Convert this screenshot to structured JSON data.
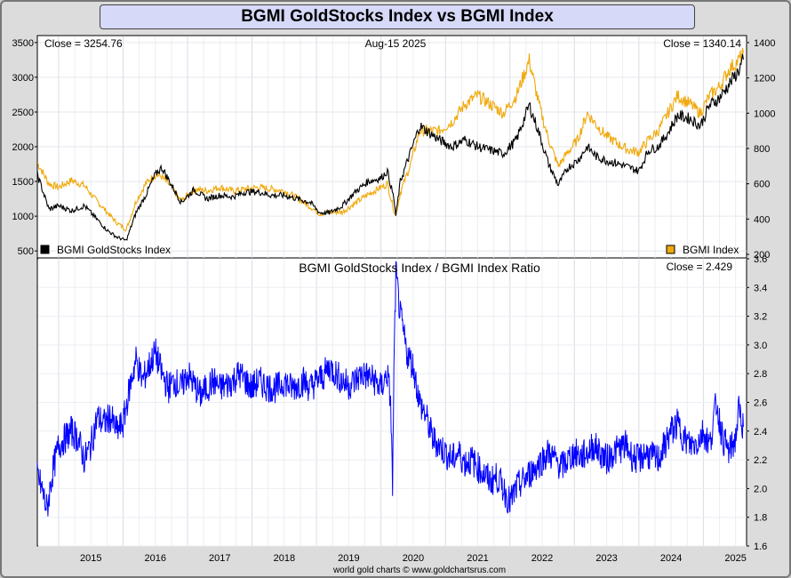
{
  "title": "BGMI GoldStocks Index vs BGMI Index",
  "footer": "world gold charts © www.goldchartsrus.com",
  "colors": {
    "gold_stocks": "#000000",
    "gold_index": "#f0a80a",
    "ratio": "#0000ff"
  },
  "chart_data": [
    {
      "type": "line",
      "date_label": "Aug-15  2025",
      "x_ticks": [
        "2015",
        "2016",
        "2017",
        "2018",
        "2019",
        "2020",
        "2021",
        "2022",
        "2023",
        "2024",
        "2025"
      ],
      "left_axis": {
        "ticks": [
          500,
          1000,
          1500,
          2000,
          2500,
          3000,
          3500
        ],
        "range": [
          400,
          3600
        ]
      },
      "right_axis": {
        "ticks": [
          200,
          400,
          600,
          800,
          1000,
          1200,
          1400
        ],
        "range": [
          180,
          1440
        ]
      },
      "legend": {
        "placement": "bottom"
      },
      "series": [
        {
          "name": "BGMI GoldStocks Index",
          "axis": "left",
          "close_label": "Close = 3254.76",
          "points": [
            [
              2014.67,
              1600
            ],
            [
              2014.85,
              1100
            ],
            [
              2015.0,
              1150
            ],
            [
              2015.2,
              1080
            ],
            [
              2015.4,
              1150
            ],
            [
              2015.55,
              1000
            ],
            [
              2015.75,
              800
            ],
            [
              2015.9,
              700
            ],
            [
              2016.05,
              650
            ],
            [
              2016.2,
              1050
            ],
            [
              2016.35,
              1300
            ],
            [
              2016.5,
              1600
            ],
            [
              2016.6,
              1700
            ],
            [
              2016.75,
              1450
            ],
            [
              2016.9,
              1200
            ],
            [
              2017.1,
              1380
            ],
            [
              2017.3,
              1250
            ],
            [
              2017.5,
              1300
            ],
            [
              2017.7,
              1280
            ],
            [
              2017.9,
              1350
            ],
            [
              2018.1,
              1350
            ],
            [
              2018.3,
              1300
            ],
            [
              2018.5,
              1300
            ],
            [
              2018.7,
              1250
            ],
            [
              2018.9,
              1200
            ],
            [
              2019.05,
              1050
            ],
            [
              2019.2,
              1050
            ],
            [
              2019.4,
              1150
            ],
            [
              2019.6,
              1350
            ],
            [
              2019.8,
              1500
            ],
            [
              2020.0,
              1550
            ],
            [
              2020.1,
              1650
            ],
            [
              2020.2,
              1250
            ],
            [
              2020.23,
              1000
            ],
            [
              2020.3,
              1500
            ],
            [
              2020.45,
              1900
            ],
            [
              2020.6,
              2300
            ],
            [
              2020.75,
              2200
            ],
            [
              2020.9,
              2100
            ],
            [
              2021.1,
              2000
            ],
            [
              2021.3,
              2100
            ],
            [
              2021.5,
              2000
            ],
            [
              2021.7,
              1950
            ],
            [
              2021.9,
              1900
            ],
            [
              2022.1,
              2100
            ],
            [
              2022.3,
              2600
            ],
            [
              2022.45,
              2200
            ],
            [
              2022.6,
              1750
            ],
            [
              2022.75,
              1450
            ],
            [
              2022.9,
              1700
            ],
            [
              2023.05,
              1800
            ],
            [
              2023.2,
              2000
            ],
            [
              2023.35,
              1850
            ],
            [
              2023.5,
              1800
            ],
            [
              2023.7,
              1750
            ],
            [
              2023.85,
              1700
            ],
            [
              2024.0,
              1650
            ],
            [
              2024.15,
              1950
            ],
            [
              2024.3,
              2000
            ],
            [
              2024.45,
              2200
            ],
            [
              2024.6,
              2450
            ],
            [
              2024.8,
              2400
            ],
            [
              2024.95,
              2300
            ],
            [
              2025.1,
              2600
            ],
            [
              2025.25,
              2700
            ],
            [
              2025.4,
              2900
            ],
            [
              2025.55,
              3100
            ],
            [
              2025.62,
              3254.76
            ]
          ]
        },
        {
          "name": "BGMI Index",
          "axis": "right",
          "close_label": "Close = 1340.14",
          "points": [
            [
              2014.67,
              720
            ],
            [
              2014.85,
              600
            ],
            [
              2015.0,
              580
            ],
            [
              2015.2,
              620
            ],
            [
              2015.4,
              590
            ],
            [
              2015.55,
              520
            ],
            [
              2015.75,
              440
            ],
            [
              2015.9,
              380
            ],
            [
              2016.05,
              340
            ],
            [
              2016.2,
              500
            ],
            [
              2016.35,
              600
            ],
            [
              2016.5,
              650
            ],
            [
              2016.6,
              640
            ],
            [
              2016.75,
              580
            ],
            [
              2016.9,
              500
            ],
            [
              2017.1,
              570
            ],
            [
              2017.3,
              560
            ],
            [
              2017.5,
              580
            ],
            [
              2017.7,
              560
            ],
            [
              2017.9,
              570
            ],
            [
              2018.1,
              580
            ],
            [
              2018.3,
              570
            ],
            [
              2018.5,
              560
            ],
            [
              2018.7,
              520
            ],
            [
              2018.9,
              470
            ],
            [
              2019.05,
              430
            ],
            [
              2019.2,
              440
            ],
            [
              2019.4,
              440
            ],
            [
              2019.6,
              490
            ],
            [
              2019.8,
              540
            ],
            [
              2020.0,
              580
            ],
            [
              2020.1,
              600
            ],
            [
              2020.2,
              450
            ],
            [
              2020.23,
              420
            ],
            [
              2020.3,
              550
            ],
            [
              2020.45,
              700
            ],
            [
              2020.6,
              900
            ],
            [
              2020.75,
              900
            ],
            [
              2020.9,
              900
            ],
            [
              2021.1,
              950
            ],
            [
              2021.3,
              1050
            ],
            [
              2021.5,
              1100
            ],
            [
              2021.7,
              1050
            ],
            [
              2021.9,
              1000
            ],
            [
              2022.1,
              1100
            ],
            [
              2022.3,
              1300
            ],
            [
              2022.45,
              1050
            ],
            [
              2022.6,
              850
            ],
            [
              2022.75,
              700
            ],
            [
              2022.9,
              780
            ],
            [
              2023.05,
              850
            ],
            [
              2023.2,
              1000
            ],
            [
              2023.35,
              930
            ],
            [
              2023.5,
              870
            ],
            [
              2023.7,
              820
            ],
            [
              2023.85,
              790
            ],
            [
              2024.0,
              780
            ],
            [
              2024.15,
              850
            ],
            [
              2024.3,
              900
            ],
            [
              2024.45,
              1000
            ],
            [
              2024.6,
              1100
            ],
            [
              2024.8,
              1050
            ],
            [
              2024.95,
              1000
            ],
            [
              2025.1,
              1100
            ],
            [
              2025.25,
              1150
            ],
            [
              2025.4,
              1250
            ],
            [
              2025.55,
              1300
            ],
            [
              2025.62,
              1340.14
            ]
          ]
        }
      ]
    },
    {
      "type": "line",
      "title": "BGMI GoldStocks Index  /  BGMI Index Ratio",
      "close_label": "Close = 2.429",
      "y_ticks": [
        1.6,
        1.8,
        2.0,
        2.2,
        2.4,
        2.6,
        2.8,
        3.0,
        3.2,
        3.4,
        3.6
      ],
      "y_range": [
        1.6,
        3.6
      ],
      "series": [
        {
          "name": "BGMI GoldStocks Index  /  BGMI Index Ratio",
          "points": [
            [
              2014.67,
              2.1
            ],
            [
              2014.75,
              1.98
            ],
            [
              2014.82,
              1.85
            ],
            [
              2014.9,
              2.1
            ],
            [
              2015.0,
              2.3
            ],
            [
              2015.1,
              2.35
            ],
            [
              2015.2,
              2.4
            ],
            [
              2015.3,
              2.35
            ],
            [
              2015.4,
              2.2
            ],
            [
              2015.5,
              2.3
            ],
            [
              2015.6,
              2.5
            ],
            [
              2015.7,
              2.45
            ],
            [
              2015.8,
              2.5
            ],
            [
              2015.9,
              2.4
            ],
            [
              2016.0,
              2.45
            ],
            [
              2016.1,
              2.7
            ],
            [
              2016.2,
              2.9
            ],
            [
              2016.3,
              2.75
            ],
            [
              2016.4,
              2.85
            ],
            [
              2016.5,
              2.95
            ],
            [
              2016.6,
              2.8
            ],
            [
              2016.7,
              2.7
            ],
            [
              2016.8,
              2.75
            ],
            [
              2016.9,
              2.7
            ],
            [
              2017.0,
              2.8
            ],
            [
              2017.1,
              2.72
            ],
            [
              2017.2,
              2.65
            ],
            [
              2017.3,
              2.7
            ],
            [
              2017.4,
              2.75
            ],
            [
              2017.5,
              2.7
            ],
            [
              2017.6,
              2.72
            ],
            [
              2017.7,
              2.75
            ],
            [
              2017.8,
              2.8
            ],
            [
              2017.9,
              2.75
            ],
            [
              2018.0,
              2.7
            ],
            [
              2018.1,
              2.75
            ],
            [
              2018.2,
              2.72
            ],
            [
              2018.3,
              2.7
            ],
            [
              2018.4,
              2.7
            ],
            [
              2018.5,
              2.75
            ],
            [
              2018.6,
              2.7
            ],
            [
              2018.7,
              2.72
            ],
            [
              2018.8,
              2.75
            ],
            [
              2018.9,
              2.7
            ],
            [
              2019.0,
              2.75
            ],
            [
              2019.1,
              2.78
            ],
            [
              2019.2,
              2.85
            ],
            [
              2019.3,
              2.8
            ],
            [
              2019.4,
              2.75
            ],
            [
              2019.5,
              2.72
            ],
            [
              2019.6,
              2.75
            ],
            [
              2019.7,
              2.8
            ],
            [
              2019.8,
              2.78
            ],
            [
              2019.9,
              2.75
            ],
            [
              2020.0,
              2.7
            ],
            [
              2020.1,
              2.8
            ],
            [
              2020.15,
              2.6
            ],
            [
              2020.18,
              2.0
            ],
            [
              2020.2,
              2.8
            ],
            [
              2020.23,
              3.5
            ],
            [
              2020.3,
              3.2
            ],
            [
              2020.4,
              2.95
            ],
            [
              2020.5,
              2.85
            ],
            [
              2020.6,
              2.6
            ],
            [
              2020.7,
              2.5
            ],
            [
              2020.8,
              2.35
            ],
            [
              2020.9,
              2.3
            ],
            [
              2021.0,
              2.25
            ],
            [
              2021.1,
              2.2
            ],
            [
              2021.2,
              2.25
            ],
            [
              2021.3,
              2.18
            ],
            [
              2021.4,
              2.2
            ],
            [
              2021.5,
              2.15
            ],
            [
              2021.6,
              2.1
            ],
            [
              2021.7,
              2.05
            ],
            [
              2021.8,
              2.08
            ],
            [
              2021.9,
              2.0
            ],
            [
              2022.0,
              1.9
            ],
            [
              2022.1,
              2.0
            ],
            [
              2022.2,
              2.05
            ],
            [
              2022.3,
              2.1
            ],
            [
              2022.4,
              2.15
            ],
            [
              2022.5,
              2.2
            ],
            [
              2022.6,
              2.25
            ],
            [
              2022.7,
              2.2
            ],
            [
              2022.8,
              2.15
            ],
            [
              2022.9,
              2.2
            ],
            [
              2023.0,
              2.25
            ],
            [
              2023.1,
              2.22
            ],
            [
              2023.2,
              2.25
            ],
            [
              2023.3,
              2.3
            ],
            [
              2023.4,
              2.25
            ],
            [
              2023.5,
              2.2
            ],
            [
              2023.6,
              2.25
            ],
            [
              2023.7,
              2.28
            ],
            [
              2023.8,
              2.3
            ],
            [
              2023.9,
              2.22
            ],
            [
              2024.0,
              2.2
            ],
            [
              2024.1,
              2.25
            ],
            [
              2024.2,
              2.22
            ],
            [
              2024.3,
              2.2
            ],
            [
              2024.4,
              2.3
            ],
            [
              2024.5,
              2.4
            ],
            [
              2024.6,
              2.45
            ],
            [
              2024.7,
              2.35
            ],
            [
              2024.8,
              2.3
            ],
            [
              2024.9,
              2.32
            ],
            [
              2025.0,
              2.4
            ],
            [
              2025.1,
              2.3
            ],
            [
              2025.2,
              2.6
            ],
            [
              2025.3,
              2.35
            ],
            [
              2025.4,
              2.25
            ],
            [
              2025.5,
              2.35
            ],
            [
              2025.55,
              2.55
            ],
            [
              2025.62,
              2.429
            ]
          ]
        }
      ]
    }
  ]
}
